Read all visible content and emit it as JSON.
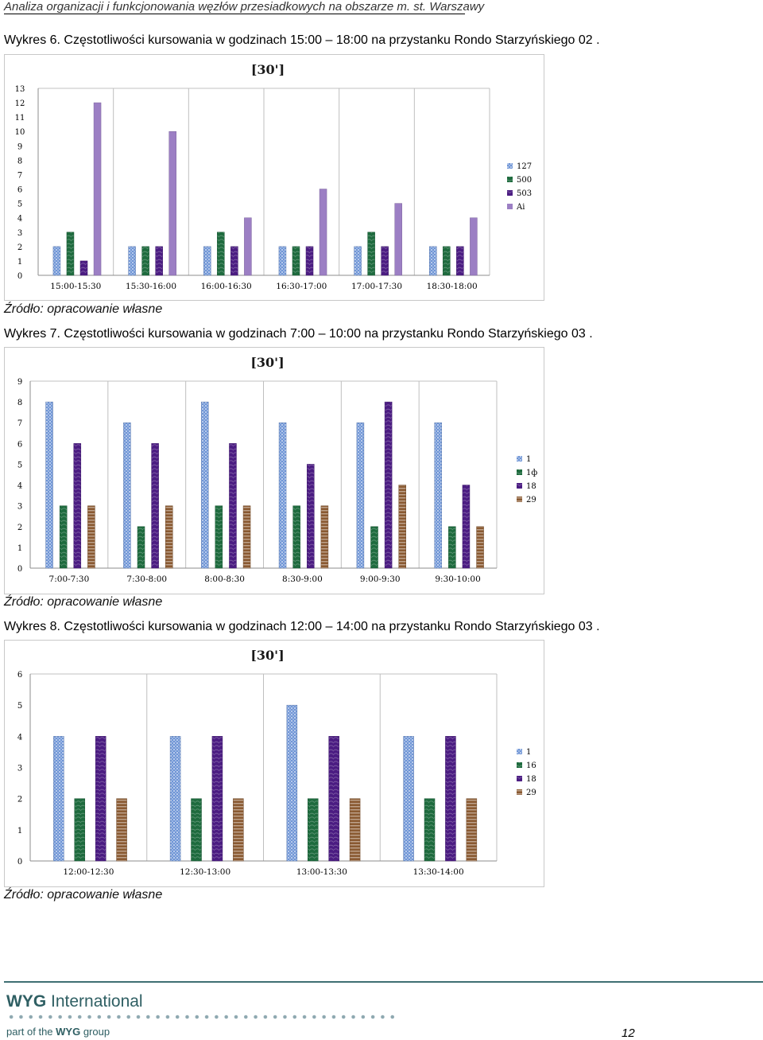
{
  "header": {
    "running_title": "Analiza organizacji i funkcjonowania węzłów przesiadkowych na obszarze m. st. Warszawy"
  },
  "figures": [
    {
      "caption": "Wykres 6. Częstotliwości kursowania  w godzinach 15:00 – 18:00 na przystanku Rondo Starzyńskiego 02 .",
      "source": "Źródło: opracowanie własne"
    },
    {
      "caption": "Wykres 7. Częstotliwości kursowania  w godzinach 7:00 – 10:00 na przystanku Rondo Starzyńskiego 03 .",
      "source": "Źródło: opracowanie własne"
    },
    {
      "caption": "Wykres 8. Częstotliwości kursowania  w godzinach 12:00 – 14:00 na przystanku Rondo Starzyńskiego 03 .",
      "source": "Źródło: opracowanie własne"
    }
  ],
  "chart_data": [
    {
      "type": "bar",
      "title": "[30']",
      "categories": [
        "15:00-15:30",
        "15:30-16:00",
        "16:00-16:30",
        "16:30-17:00",
        "17:00-17:30",
        "18:30-18:00"
      ],
      "ylim": [
        0,
        13
      ],
      "yticks": [
        0,
        1,
        2,
        3,
        4,
        5,
        6,
        7,
        8,
        9,
        10,
        11,
        12,
        13
      ],
      "grid": "vertical",
      "legend_position": "right",
      "series": [
        {
          "name": "127",
          "values": [
            2,
            2,
            2,
            2,
            2,
            2
          ],
          "color": "#6f95d6",
          "pattern": "checker"
        },
        {
          "name": "500",
          "values": [
            3,
            2,
            3,
            2,
            3,
            2
          ],
          "color": "#1e6b3e",
          "pattern": "marble"
        },
        {
          "name": "503",
          "values": [
            1,
            2,
            2,
            2,
            2,
            2
          ],
          "color": "#4b1c82",
          "pattern": "marble"
        },
        {
          "name": "Ai",
          "values": [
            12,
            10,
            4,
            6,
            5,
            4
          ],
          "color": "#9c7fc4",
          "pattern": "solid"
        }
      ]
    },
    {
      "type": "bar",
      "title": "[30']",
      "categories": [
        "7:00-7:30",
        "7:30-8:00",
        "8:00-8:30",
        "8:30-9:00",
        "9:00-9:30",
        "9:30-10:00"
      ],
      "ylim": [
        0,
        9
      ],
      "yticks": [
        0,
        1,
        2,
        3,
        4,
        5,
        6,
        7,
        8,
        9
      ],
      "grid": "vertical",
      "legend_position": "right",
      "series": [
        {
          "name": "1",
          "values": [
            8,
            7,
            8,
            7,
            7,
            7
          ],
          "color": "#6f95d6",
          "pattern": "checker"
        },
        {
          "name": "1ф",
          "values": [
            3,
            2,
            3,
            3,
            2,
            2
          ],
          "color": "#1e6b3e",
          "pattern": "marble"
        },
        {
          "name": "18",
          "values": [
            6,
            6,
            6,
            5,
            8,
            4
          ],
          "color": "#4b1c82",
          "pattern": "marble"
        },
        {
          "name": "29",
          "values": [
            3,
            3,
            3,
            3,
            4,
            2
          ],
          "color": "#8a5a32",
          "pattern": "wood"
        }
      ]
    },
    {
      "type": "bar",
      "title": "[30']",
      "categories": [
        "12:00-12:30",
        "12:30-13:00",
        "13:00-13:30",
        "13:30-14:00"
      ],
      "ylim": [
        0,
        6
      ],
      "yticks": [
        0,
        1,
        2,
        3,
        4,
        5,
        6
      ],
      "grid": "vertical",
      "legend_position": "right",
      "series": [
        {
          "name": "1",
          "values": [
            4,
            4,
            5,
            4
          ],
          "color": "#6f95d6",
          "pattern": "checker"
        },
        {
          "name": "16",
          "values": [
            2,
            2,
            2,
            2
          ],
          "color": "#1e6b3e",
          "pattern": "marble"
        },
        {
          "name": "18",
          "values": [
            4,
            4,
            4,
            4
          ],
          "color": "#4b1c82",
          "pattern": "marble"
        },
        {
          "name": "29",
          "values": [
            2,
            2,
            2,
            2
          ],
          "color": "#8a5a32",
          "pattern": "wood"
        }
      ]
    }
  ],
  "footer": {
    "brand_bold": "WYG",
    "brand_rest": " International",
    "part_of_prefix": "part of the ",
    "part_of_bold": "WYG",
    "part_of_suffix": " group",
    "page_number": "12"
  },
  "colors": {
    "grid": "#bfbfbf",
    "axis": "#8c8c8c",
    "footer_accent": "#2f5f63"
  }
}
